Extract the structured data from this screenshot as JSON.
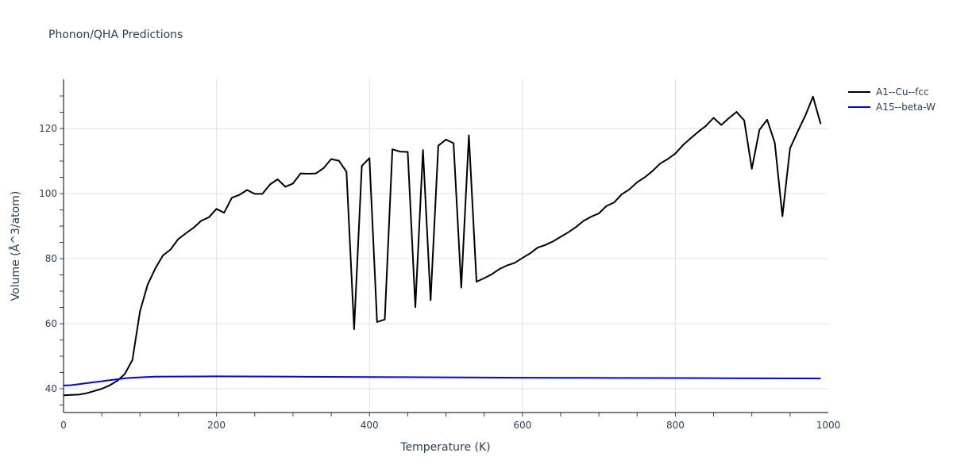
{
  "title": "Phonon/QHA Predictions",
  "legend": [
    {
      "name": "A1--Cu--fcc",
      "color": "#000000"
    },
    {
      "name": "A15--beta-W",
      "color": "#0000ff"
    }
  ],
  "chart_data": {
    "type": "line",
    "title": "Phonon/QHA Predictions",
    "xlabel": "Temperature (K)",
    "ylabel": "Volume (Å^3/atom)",
    "xlim": [
      0,
      1000
    ],
    "ylim": [
      33,
      135
    ],
    "xticks": [
      0,
      200,
      400,
      600,
      800,
      1000
    ],
    "yticks": [
      40,
      60,
      80,
      100,
      120
    ],
    "grid": true,
    "legend_position": "top-right-outside",
    "series": [
      {
        "name": "A1--Cu--fcc",
        "color": "#000000",
        "x": [
          0,
          10,
          20,
          30,
          40,
          50,
          60,
          70,
          80,
          90,
          100,
          110,
          120,
          130,
          140,
          150,
          160,
          170,
          180,
          190,
          200,
          210,
          220,
          230,
          240,
          250,
          260,
          270,
          280,
          290,
          300,
          310,
          320,
          330,
          340,
          350,
          360,
          370,
          380,
          390,
          400,
          410,
          420,
          430,
          440,
          450,
          460,
          470,
          480,
          490,
          500,
          510,
          520,
          530,
          540,
          550,
          560,
          570,
          580,
          590,
          600,
          610,
          620,
          630,
          640,
          650,
          660,
          670,
          680,
          690,
          700,
          710,
          720,
          730,
          740,
          750,
          760,
          770,
          780,
          790,
          800,
          810,
          820,
          830,
          840,
          850,
          860,
          870,
          880,
          890,
          900,
          910,
          920,
          930,
          940,
          950,
          960,
          970,
          980,
          990
        ],
        "values": [
          38.0,
          38.1,
          38.2,
          38.6,
          39.3,
          40.0,
          41.0,
          42.4,
          44.5,
          48.8,
          63.8,
          72.0,
          77.0,
          81.0,
          82.8,
          86.0,
          87.8,
          89.5,
          91.6,
          92.7,
          95.3,
          94.1,
          98.7,
          99.6,
          101.1,
          99.9,
          99.9,
          102.8,
          104.4,
          102.1,
          103.1,
          106.2,
          106.1,
          106.2,
          107.8,
          110.6,
          110.1,
          106.7,
          58.3,
          108.5,
          110.9,
          60.5,
          61.3,
          113.6,
          112.9,
          112.8,
          65.1,
          113.4,
          67.2,
          114.7,
          116.6,
          115.5,
          71.1,
          117.9,
          72.9,
          74.0,
          75.2,
          76.8,
          77.9,
          78.7,
          80.2,
          81.6,
          83.4,
          84.2,
          85.3,
          86.7,
          88.1,
          89.7,
          91.6,
          92.9,
          93.9,
          96.2,
          97.3,
          99.8,
          101.3,
          103.5,
          105.0,
          106.9,
          109.2,
          110.6,
          112.3,
          114.9,
          117.0,
          119.0,
          120.8,
          123.3,
          121.1,
          123.2,
          125.1,
          122.5,
          107.6,
          119.6,
          122.7,
          115.6,
          93.0,
          113.9,
          119.1,
          124.0,
          129.8,
          121.4
        ]
      },
      {
        "name": "A15--beta-W",
        "color": "#0000ff",
        "x": [
          0,
          10,
          20,
          30,
          40,
          50,
          60,
          70,
          80,
          90,
          100,
          120,
          150,
          200,
          300,
          400,
          500,
          600,
          700,
          800,
          900,
          990
        ],
        "values": [
          41.0,
          41.1,
          41.4,
          41.7,
          42.0,
          42.3,
          42.6,
          42.9,
          43.2,
          43.4,
          43.5,
          43.7,
          43.75,
          43.8,
          43.7,
          43.6,
          43.5,
          43.4,
          43.35,
          43.3,
          43.2,
          43.15
        ]
      }
    ]
  },
  "axes": {
    "x_title": "Temperature (K)",
    "y_title": "Volume (Å^3/atom)",
    "x_tick_labels": [
      "0",
      "200",
      "400",
      "600",
      "800",
      "1000"
    ],
    "y_tick_labels": [
      "40",
      "60",
      "80",
      "100",
      "120"
    ]
  }
}
